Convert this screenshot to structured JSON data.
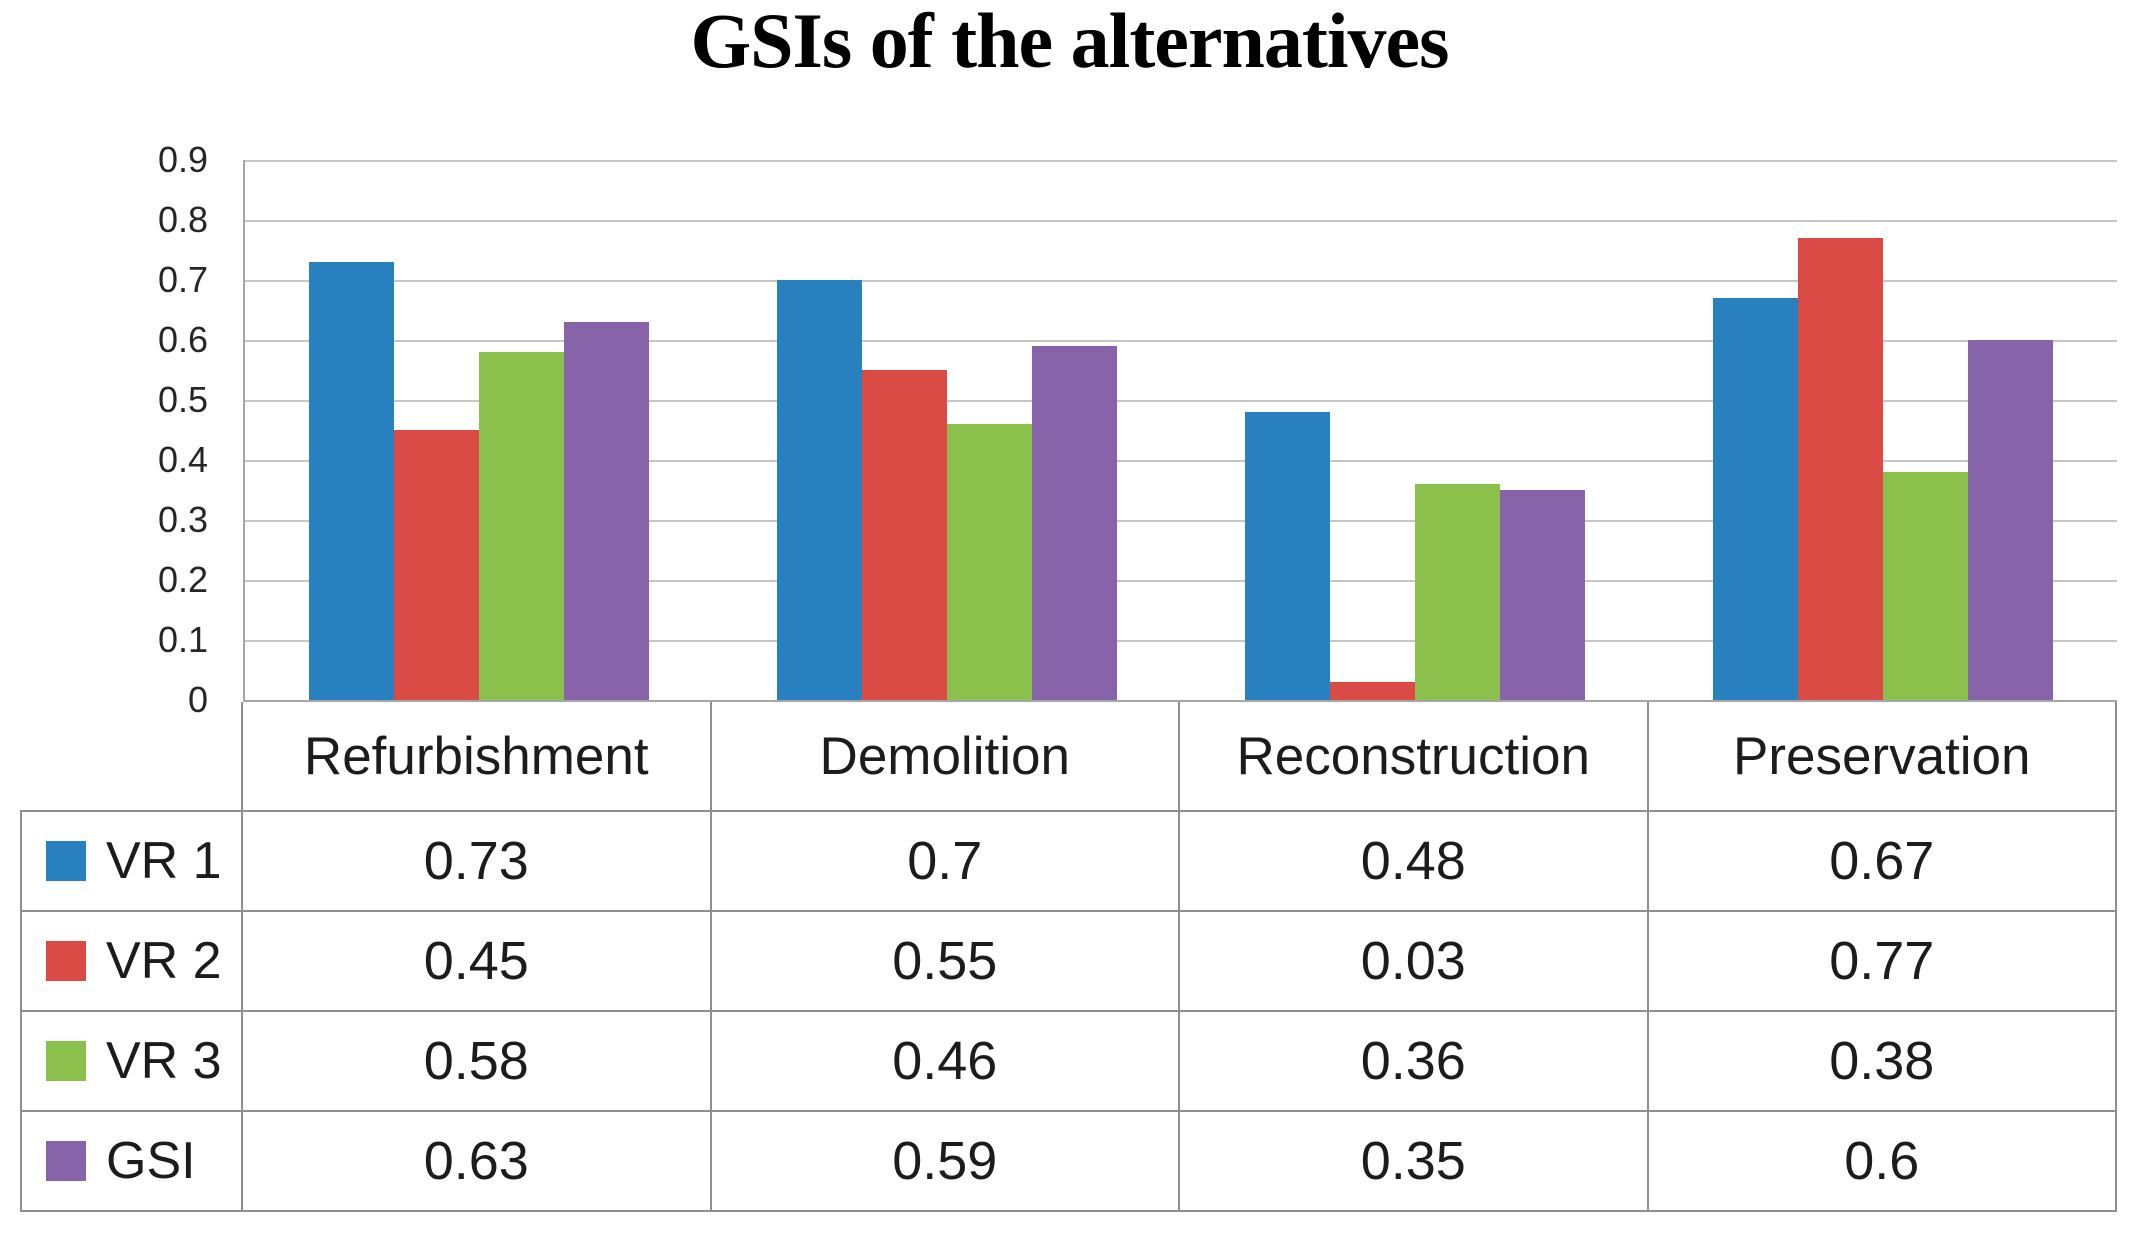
{
  "chart_data": {
    "type": "bar",
    "title": "GSIs of the alternatives",
    "xlabel": "",
    "ylabel": "",
    "categories": [
      "Refurbishment",
      "Demolition",
      "Reconstruction",
      "Preservation"
    ],
    "series": [
      {
        "name": "VR 1",
        "color": "#2980BE",
        "values": [
          0.73,
          0.7,
          0.48,
          0.67
        ]
      },
      {
        "name": "VR 2",
        "color": "#DA4B45",
        "values": [
          0.45,
          0.55,
          0.03,
          0.77
        ]
      },
      {
        "name": "VR 3",
        "color": "#8BC04D",
        "values": [
          0.58,
          0.46,
          0.36,
          0.38
        ]
      },
      {
        "name": "GSI",
        "color": "#8764A9",
        "values": [
          0.63,
          0.59,
          0.35,
          0.6
        ]
      }
    ],
    "ylim": [
      0,
      0.9
    ],
    "yticks": [
      0,
      0.1,
      0.2,
      0.3,
      0.4,
      0.5,
      0.6,
      0.7,
      0.8,
      0.9
    ],
    "ytick_labels": [
      "0",
      "0.1",
      "0.2",
      "0.3",
      "0.4",
      "0.5",
      "0.6",
      "0.7",
      "0.8",
      "0.9"
    ],
    "grid": true,
    "gridline_step": 0.1,
    "legend_position": "data-table-left",
    "data_table_shown": true
  }
}
